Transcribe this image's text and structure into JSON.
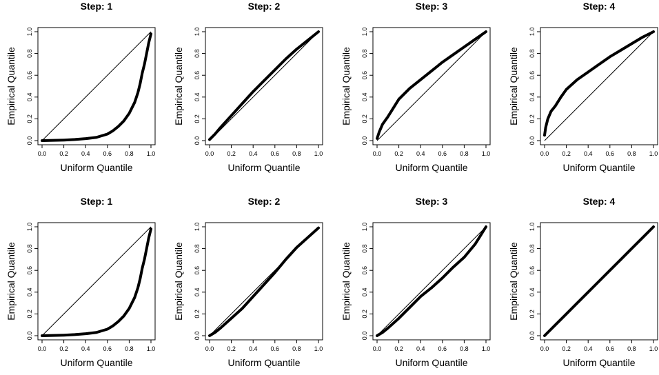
{
  "chart_data": [
    {
      "type": "line",
      "title": "Step: 1",
      "xlabel": "Uniform Quantile",
      "ylabel": "Empirical Quantile",
      "xlim": [
        0,
        1
      ],
      "ylim": [
        0,
        1
      ],
      "xticks": [
        "0.0",
        "0.2",
        "0.4",
        "0.6",
        "0.8",
        "1.0"
      ],
      "yticks": [
        "0.0",
        "0.2",
        "0.4",
        "0.6",
        "0.8",
        "1.0"
      ],
      "grid": false,
      "reference_line": [
        [
          0,
          0
        ],
        [
          1,
          1
        ]
      ],
      "x": [
        0.0,
        0.1,
        0.2,
        0.3,
        0.4,
        0.5,
        0.6,
        0.65,
        0.7,
        0.75,
        0.8,
        0.85,
        0.88,
        0.9,
        0.92,
        0.94,
        0.96,
        0.98,
        1.0
      ],
      "y": [
        0.0,
        0.002,
        0.005,
        0.01,
        0.018,
        0.03,
        0.06,
        0.09,
        0.13,
        0.18,
        0.25,
        0.35,
        0.44,
        0.52,
        0.62,
        0.7,
        0.8,
        0.9,
        0.98
      ]
    },
    {
      "type": "line",
      "title": "Step: 2",
      "xlabel": "Uniform Quantile",
      "ylabel": "Empirical Quantile",
      "xlim": [
        0,
        1
      ],
      "ylim": [
        0,
        1
      ],
      "xticks": [
        "0.0",
        "0.2",
        "0.4",
        "0.6",
        "0.8",
        "1.0"
      ],
      "yticks": [
        "0.0",
        "0.2",
        "0.4",
        "0.6",
        "0.8",
        "1.0"
      ],
      "grid": false,
      "reference_line": [
        [
          0,
          0
        ],
        [
          1,
          1
        ]
      ],
      "x": [
        0.0,
        0.05,
        0.1,
        0.2,
        0.3,
        0.4,
        0.5,
        0.6,
        0.7,
        0.8,
        0.9,
        1.0
      ],
      "y": [
        0.01,
        0.06,
        0.12,
        0.23,
        0.34,
        0.45,
        0.55,
        0.65,
        0.75,
        0.84,
        0.92,
        1.0
      ]
    },
    {
      "type": "line",
      "title": "Step: 3",
      "xlabel": "Uniform Quantile",
      "ylabel": "Empirical Quantile",
      "xlim": [
        0,
        1
      ],
      "ylim": [
        0,
        1
      ],
      "xticks": [
        "0.0",
        "0.2",
        "0.4",
        "0.6",
        "0.8",
        "1.0"
      ],
      "yticks": [
        "0.0",
        "0.2",
        "0.4",
        "0.6",
        "0.8",
        "1.0"
      ],
      "grid": false,
      "reference_line": [
        [
          0,
          0
        ],
        [
          1,
          1
        ]
      ],
      "x": [
        0.0,
        0.02,
        0.05,
        0.1,
        0.15,
        0.2,
        0.3,
        0.4,
        0.5,
        0.6,
        0.7,
        0.8,
        0.9,
        1.0
      ],
      "y": [
        0.02,
        0.08,
        0.15,
        0.22,
        0.3,
        0.38,
        0.48,
        0.56,
        0.64,
        0.72,
        0.79,
        0.86,
        0.93,
        1.0
      ]
    },
    {
      "type": "line",
      "title": "Step: 4",
      "xlabel": "Uniform Quantile",
      "ylabel": "Empirical Quantile",
      "xlim": [
        0,
        1
      ],
      "ylim": [
        0,
        1
      ],
      "xticks": [
        "0.0",
        "0.2",
        "0.4",
        "0.6",
        "0.8",
        "1.0"
      ],
      "yticks": [
        "0.0",
        "0.2",
        "0.4",
        "0.6",
        "0.8",
        "1.0"
      ],
      "grid": false,
      "reference_line": [
        [
          0,
          0
        ],
        [
          1,
          1
        ]
      ],
      "x": [
        0.0,
        0.01,
        0.03,
        0.06,
        0.1,
        0.15,
        0.2,
        0.3,
        0.4,
        0.5,
        0.6,
        0.7,
        0.8,
        0.9,
        1.0
      ],
      "y": [
        0.05,
        0.12,
        0.2,
        0.27,
        0.32,
        0.4,
        0.47,
        0.56,
        0.63,
        0.7,
        0.77,
        0.83,
        0.89,
        0.95,
        1.0
      ]
    },
    {
      "type": "line",
      "title": "Step: 1",
      "xlabel": "Uniform Quantile",
      "ylabel": "Empirical Quantile",
      "xlim": [
        0,
        1
      ],
      "ylim": [
        0,
        1
      ],
      "xticks": [
        "0.0",
        "0.2",
        "0.4",
        "0.6",
        "0.8",
        "1.0"
      ],
      "yticks": [
        "0.0",
        "0.2",
        "0.4",
        "0.6",
        "0.8",
        "1.0"
      ],
      "grid": false,
      "reference_line": [
        [
          0,
          0
        ],
        [
          1,
          1
        ]
      ],
      "x": [
        0.0,
        0.1,
        0.2,
        0.3,
        0.4,
        0.5,
        0.6,
        0.65,
        0.7,
        0.75,
        0.8,
        0.85,
        0.88,
        0.9,
        0.92,
        0.94,
        0.96,
        0.98,
        1.0
      ],
      "y": [
        0.0,
        0.002,
        0.005,
        0.01,
        0.018,
        0.03,
        0.06,
        0.09,
        0.13,
        0.18,
        0.25,
        0.35,
        0.44,
        0.52,
        0.62,
        0.7,
        0.8,
        0.9,
        0.98
      ]
    },
    {
      "type": "line",
      "title": "Step: 2",
      "xlabel": "Uniform Quantile",
      "ylabel": "Empirical Quantile",
      "xlim": [
        0,
        1
      ],
      "ylim": [
        0,
        1
      ],
      "xticks": [
        "0.0",
        "0.2",
        "0.4",
        "0.6",
        "0.8",
        "1.0"
      ],
      "yticks": [
        "0.0",
        "0.2",
        "0.4",
        "0.6",
        "0.8",
        "1.0"
      ],
      "grid": false,
      "reference_line": [
        [
          0,
          0
        ],
        [
          1,
          1
        ]
      ],
      "x": [
        0.0,
        0.05,
        0.1,
        0.2,
        0.3,
        0.4,
        0.5,
        0.6,
        0.7,
        0.8,
        0.9,
        1.0
      ],
      "y": [
        0.0,
        0.03,
        0.07,
        0.16,
        0.25,
        0.36,
        0.47,
        0.58,
        0.7,
        0.81,
        0.9,
        0.99
      ]
    },
    {
      "type": "line",
      "title": "Step: 3",
      "xlabel": "Uniform Quantile",
      "ylabel": "Empirical Quantile",
      "xlim": [
        0,
        1
      ],
      "ylim": [
        0,
        1
      ],
      "xticks": [
        "0.0",
        "0.2",
        "0.4",
        "0.6",
        "0.8",
        "1.0"
      ],
      "yticks": [
        "0.0",
        "0.2",
        "0.4",
        "0.6",
        "0.8",
        "1.0"
      ],
      "grid": false,
      "reference_line": [
        [
          0,
          0
        ],
        [
          1,
          1
        ]
      ],
      "x": [
        0.0,
        0.05,
        0.1,
        0.2,
        0.3,
        0.4,
        0.5,
        0.6,
        0.7,
        0.8,
        0.9,
        0.95,
        1.0
      ],
      "y": [
        0.0,
        0.03,
        0.07,
        0.16,
        0.26,
        0.36,
        0.44,
        0.53,
        0.63,
        0.72,
        0.84,
        0.92,
        1.0
      ]
    },
    {
      "type": "line",
      "title": "Step: 4",
      "xlabel": "Uniform Quantile",
      "ylabel": "Empirical Quantile",
      "xlim": [
        0,
        1
      ],
      "ylim": [
        0,
        1
      ],
      "xticks": [
        "0.0",
        "0.2",
        "0.4",
        "0.6",
        "0.8",
        "1.0"
      ],
      "yticks": [
        "0.0",
        "0.2",
        "0.4",
        "0.6",
        "0.8",
        "1.0"
      ],
      "grid": false,
      "reference_line": [
        [
          0,
          0
        ],
        [
          1,
          1
        ]
      ],
      "x": [
        0.0,
        0.1,
        0.2,
        0.3,
        0.4,
        0.5,
        0.6,
        0.7,
        0.8,
        0.9,
        1.0
      ],
      "y": [
        0.0,
        0.1,
        0.2,
        0.3,
        0.4,
        0.5,
        0.6,
        0.7,
        0.8,
        0.9,
        1.0
      ]
    }
  ],
  "colors": {
    "curve": "#000000",
    "reference": "#000000",
    "frame": "#000000",
    "background": "#ffffff"
  }
}
